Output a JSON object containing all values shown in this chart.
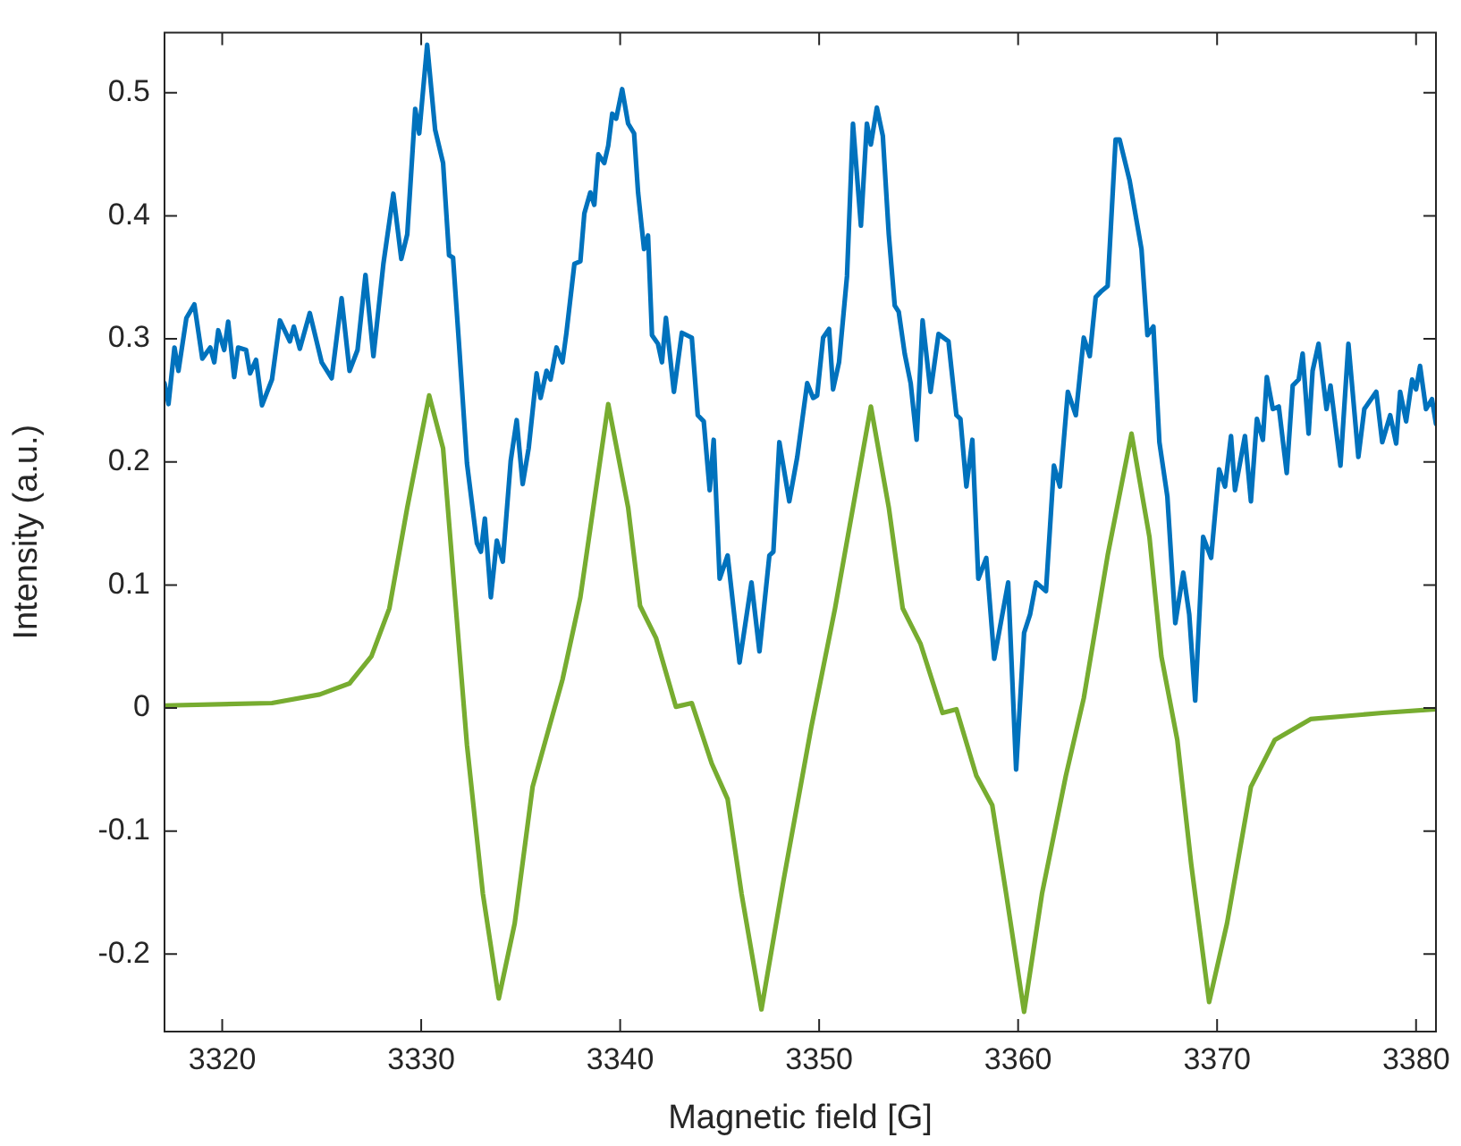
{
  "chart_data": {
    "type": "line",
    "xlabel": "Magnetic field [G]",
    "ylabel": "Intensity (a.u.)",
    "xlim": [
      3317.1,
      3381
    ],
    "xticks": [
      3320,
      3330,
      3340,
      3350,
      3360,
      3370,
      3380
    ],
    "ylim": [
      -0.263,
      0.549
    ],
    "yticks": [
      -0.2,
      -0.1,
      0,
      0.1,
      0.2,
      0.3,
      0.4,
      0.5
    ],
    "grid": false,
    "legend": false,
    "series": [
      {
        "color": "#0072bd",
        "x": [
          3317.1,
          3317.3,
          3317.6,
          3317.8,
          3318.2,
          3318.6,
          3319.0,
          3319.4,
          3319.6,
          3319.8,
          3320.1,
          3320.3,
          3320.6,
          3320.8,
          3321.2,
          3321.4,
          3321.7,
          3322.0,
          3322.5,
          3322.9,
          3323.4,
          3323.6,
          3323.9,
          3324.4,
          3325.0,
          3325.5,
          3326.0,
          3326.4,
          3326.8,
          3327.2,
          3327.6,
          3328.1,
          3328.6,
          3329.0,
          3329.3,
          3329.7,
          3329.9,
          3330.3,
          3330.7,
          3331.1,
          3331.4,
          3331.6,
          3331.9,
          3332.3,
          3332.8,
          3333.0,
          3333.2,
          3333.5,
          3333.8,
          3334.1,
          3334.5,
          3334.8,
          3335.1,
          3335.4,
          3335.8,
          3336.0,
          3336.3,
          3336.5,
          3336.8,
          3337.1,
          3337.3,
          3337.7,
          3338.0,
          3338.2,
          3338.5,
          3338.7,
          3338.9,
          3339.2,
          3339.4,
          3339.6,
          3339.8,
          3340.1,
          3340.4,
          3340.7,
          3340.9,
          3341.2,
          3341.4,
          3341.6,
          3341.9,
          3342.1,
          3342.3,
          3342.7,
          3343.1,
          3343.6,
          3343.9,
          3344.2,
          3344.5,
          3344.7,
          3345.0,
          3345.4,
          3346.0,
          3346.6,
          3347.0,
          3347.5,
          3347.7,
          3348.0,
          3348.5,
          3348.9,
          3349.4,
          3349.7,
          3349.9,
          3350.2,
          3350.5,
          3350.7,
          3351.0,
          3351.4,
          3351.7,
          3352.1,
          3352.4,
          3352.6,
          3352.9,
          3353.2,
          3353.5,
          3353.8,
          3354.0,
          3354.3,
          3354.6,
          3354.9,
          3355.2,
          3355.6,
          3356.0,
          3356.5,
          3356.9,
          3357.1,
          3357.4,
          3357.7,
          3358.0,
          3358.4,
          3358.8,
          3359.5,
          3359.9,
          3360.3,
          3360.6,
          3360.9,
          3361.4,
          3361.8,
          3362.1,
          3362.5,
          3362.9,
          3363.3,
          3363.6,
          3363.9,
          3364.2,
          3364.5,
          3364.9,
          3365.1,
          3365.6,
          3366.2,
          3366.5,
          3366.8,
          3367.1,
          3367.5,
          3367.9,
          3368.3,
          3368.6,
          3368.9,
          3369.3,
          3369.7,
          3370.1,
          3370.4,
          3370.7,
          3370.9,
          3371.4,
          3371.7,
          3372.0,
          3372.3,
          3372.5,
          3372.8,
          3373.1,
          3373.5,
          3373.8,
          3374.1,
          3374.3,
          3374.6,
          3374.8,
          3375.1,
          3375.5,
          3375.7,
          3376.2,
          3376.6,
          3377.1,
          3377.4,
          3378.0,
          3378.3,
          3378.7,
          3379.0,
          3379.2,
          3379.5,
          3379.8,
          3380.0,
          3380.2,
          3380.5,
          3380.8,
          3381.0
        ],
        "values": [
          0.264,
          0.247,
          0.293,
          0.274,
          0.317,
          0.328,
          0.284,
          0.293,
          0.281,
          0.307,
          0.291,
          0.314,
          0.269,
          0.293,
          0.291,
          0.272,
          0.283,
          0.246,
          0.267,
          0.315,
          0.298,
          0.31,
          0.292,
          0.321,
          0.281,
          0.268,
          0.333,
          0.274,
          0.291,
          0.352,
          0.286,
          0.361,
          0.418,
          0.365,
          0.385,
          0.487,
          0.467,
          0.539,
          0.47,
          0.443,
          0.368,
          0.366,
          0.296,
          0.199,
          0.134,
          0.127,
          0.154,
          0.09,
          0.136,
          0.119,
          0.201,
          0.234,
          0.182,
          0.211,
          0.272,
          0.252,
          0.274,
          0.267,
          0.293,
          0.281,
          0.305,
          0.361,
          0.363,
          0.402,
          0.419,
          0.409,
          0.45,
          0.443,
          0.457,
          0.483,
          0.479,
          0.503,
          0.475,
          0.467,
          0.419,
          0.373,
          0.384,
          0.303,
          0.296,
          0.281,
          0.317,
          0.257,
          0.305,
          0.301,
          0.238,
          0.233,
          0.177,
          0.218,
          0.105,
          0.124,
          0.037,
          0.102,
          0.046,
          0.124,
          0.127,
          0.216,
          0.168,
          0.204,
          0.264,
          0.252,
          0.254,
          0.301,
          0.308,
          0.259,
          0.281,
          0.351,
          0.475,
          0.392,
          0.475,
          0.458,
          0.488,
          0.465,
          0.385,
          0.327,
          0.322,
          0.288,
          0.264,
          0.218,
          0.315,
          0.257,
          0.304,
          0.298,
          0.238,
          0.235,
          0.18,
          0.218,
          0.105,
          0.122,
          0.04,
          0.102,
          -0.05,
          0.061,
          0.076,
          0.102,
          0.095,
          0.197,
          0.18,
          0.257,
          0.238,
          0.301,
          0.286,
          0.334,
          0.339,
          0.343,
          0.462,
          0.462,
          0.429,
          0.373,
          0.303,
          0.31,
          0.216,
          0.172,
          0.069,
          0.11,
          0.076,
          0.006,
          0.139,
          0.122,
          0.194,
          0.18,
          0.221,
          0.177,
          0.221,
          0.168,
          0.235,
          0.218,
          0.269,
          0.243,
          0.245,
          0.191,
          0.262,
          0.267,
          0.288,
          0.223,
          0.274,
          0.296,
          0.243,
          0.262,
          0.197,
          0.296,
          0.204,
          0.243,
          0.257,
          0.216,
          0.238,
          0.215,
          0.257,
          0.233,
          0.267,
          0.259,
          0.278,
          0.243,
          0.251,
          0.231
        ]
      },
      {
        "color": "#77ac30",
        "x": [
          3317.1,
          3322.5,
          3324.9,
          3326.4,
          3327.5,
          3328.4,
          3329.3,
          3330.4,
          3331.1,
          3331.7,
          3332.3,
          3333.1,
          3333.9,
          3334.7,
          3335.6,
          3337.1,
          3338.0,
          3339.4,
          3340.4,
          3341.0,
          3341.8,
          3342.8,
          3343.6,
          3344.6,
          3345.4,
          3346.1,
          3347.1,
          3348.2,
          3349.6,
          3350.8,
          3351.7,
          3352.6,
          3353.5,
          3354.2,
          3355.1,
          3356.2,
          3356.9,
          3357.9,
          3358.7,
          3359.4,
          3360.3,
          3361.2,
          3362.4,
          3363.3,
          3364.5,
          3365.7,
          3366.6,
          3367.2,
          3368.0,
          3368.7,
          3369.6,
          3370.5,
          3371.7,
          3372.9,
          3374.7,
          3378.3,
          3381.0
        ],
        "values": [
          0.002,
          0.004,
          0.011,
          0.02,
          0.042,
          0.081,
          0.163,
          0.254,
          0.211,
          0.09,
          -0.03,
          -0.151,
          -0.236,
          -0.175,
          -0.064,
          0.023,
          0.09,
          0.247,
          0.163,
          0.083,
          0.057,
          0.001,
          0.004,
          -0.045,
          -0.074,
          -0.151,
          -0.245,
          -0.141,
          -0.016,
          0.081,
          0.163,
          0.245,
          0.163,
          0.081,
          0.052,
          -0.004,
          -0.001,
          -0.055,
          -0.079,
          -0.151,
          -0.247,
          -0.151,
          -0.055,
          0.008,
          0.124,
          0.223,
          0.139,
          0.042,
          -0.026,
          -0.127,
          -0.239,
          -0.175,
          -0.064,
          -0.026,
          -0.009,
          -0.004,
          -0.001
        ]
      }
    ]
  }
}
